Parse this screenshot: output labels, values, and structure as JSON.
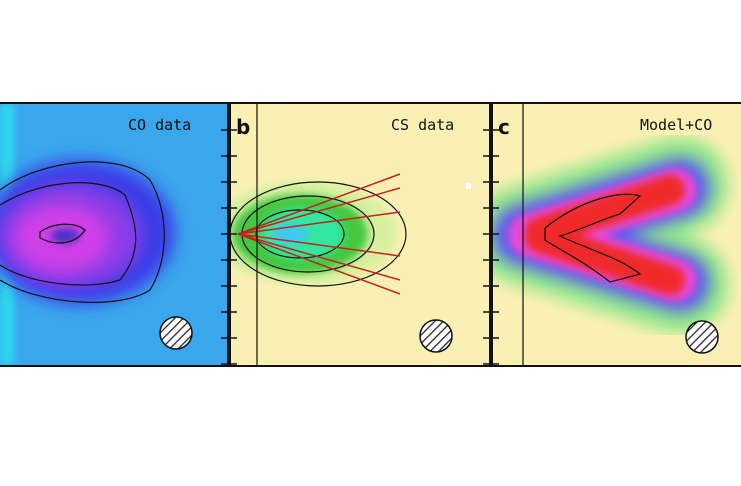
{
  "panels": [
    {
      "title": "CO data"
    },
    {
      "label": "b",
      "title": "CS data"
    },
    {
      "label": "c",
      "title": "Model+CO"
    }
  ]
}
